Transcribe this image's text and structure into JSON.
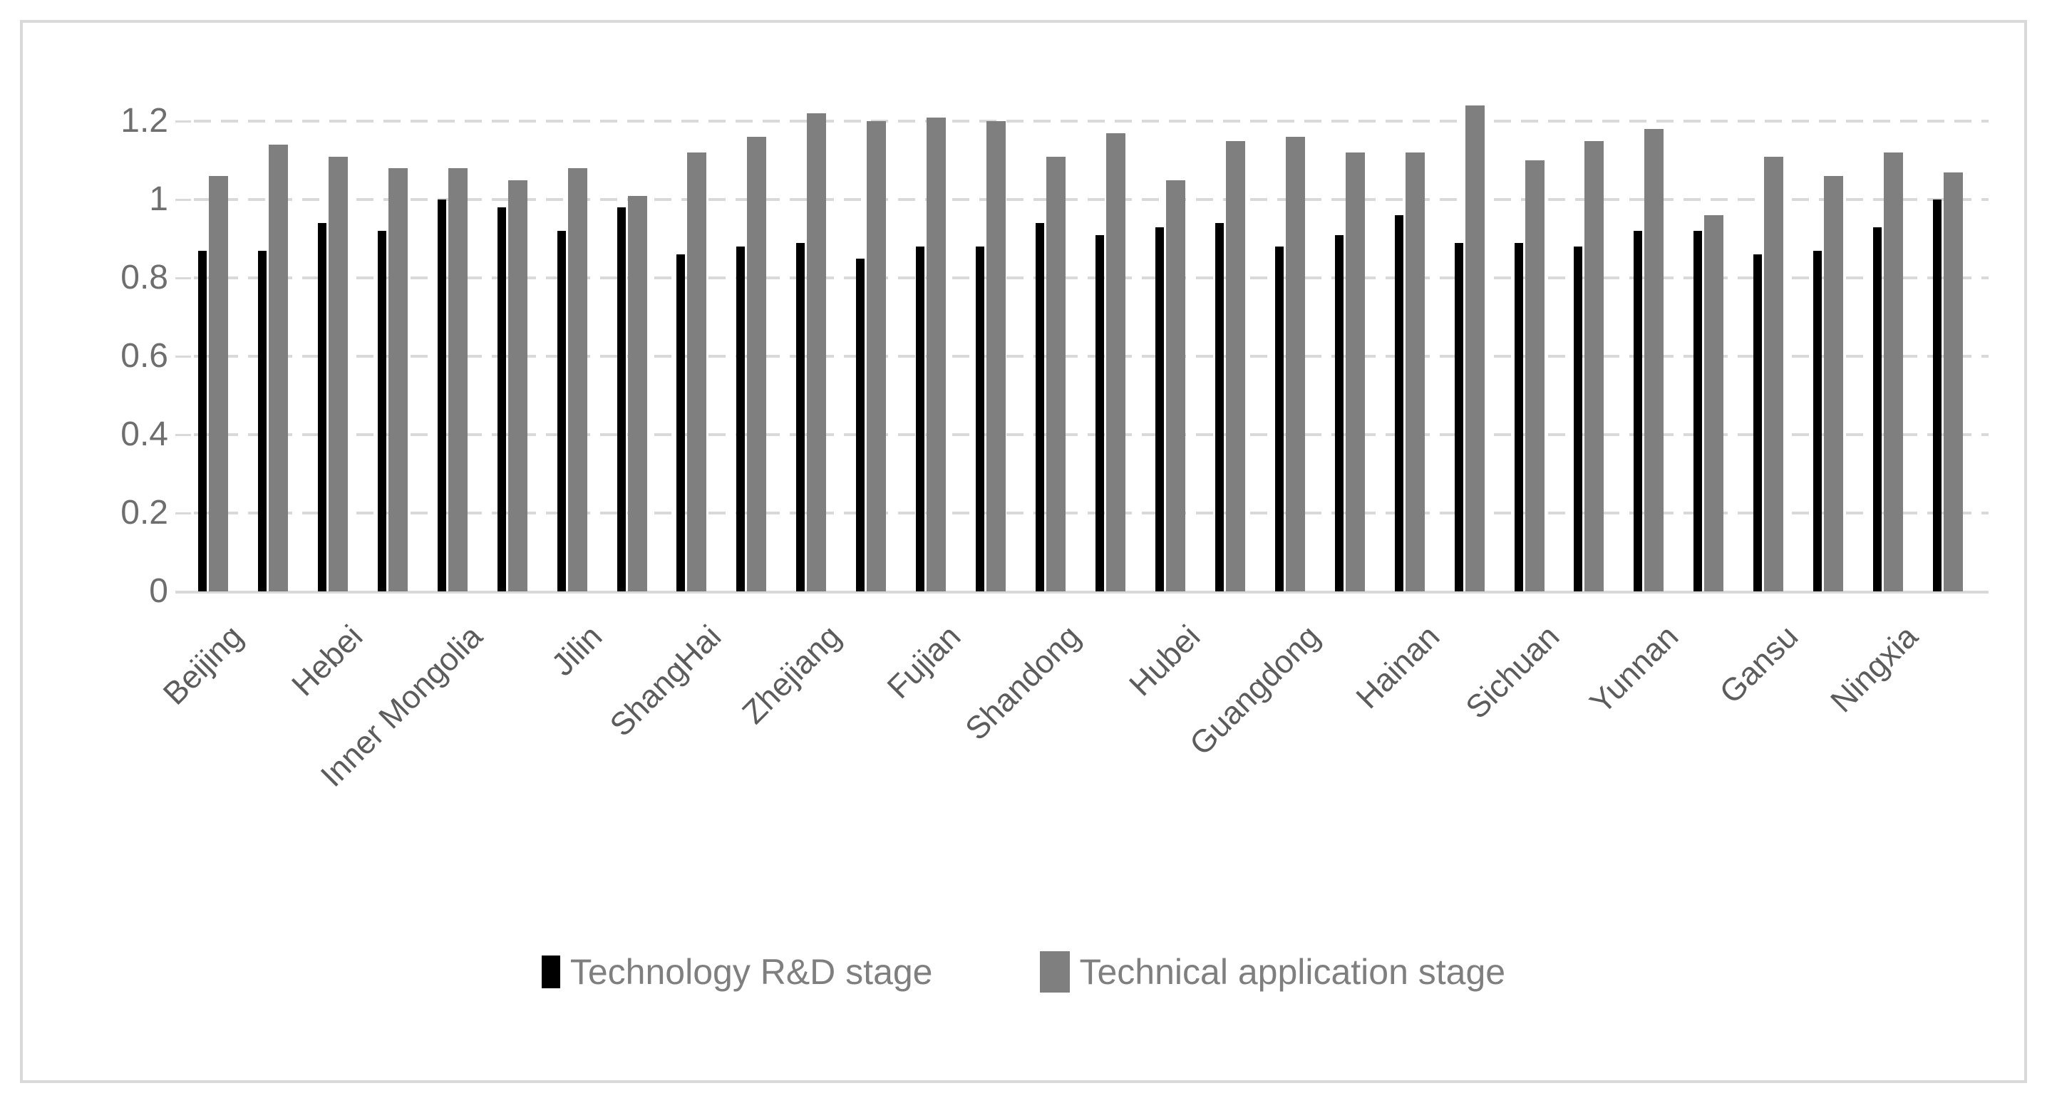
{
  "figure": {
    "background_color": "#ffffff",
    "border_color": "#d9d9d9"
  },
  "chart_data": {
    "type": "bar",
    "title": "",
    "xlabel": "",
    "ylabel": "",
    "n_categories": 30,
    "x_label_every_n_categories": 2,
    "x_tick_labels": [
      "Beijing",
      "Hebei",
      "Inner Mongolia",
      "Jilin",
      "ShangHai",
      "Zhejiang",
      "Fujian",
      "Shandong",
      "Hubei",
      "Guangdong",
      "Hainan",
      "Sichuan",
      "Yunnan",
      "Gansu",
      "Ningxia"
    ],
    "x_tick_label_rotation_deg": 45,
    "y_tick_labels": [
      "0",
      "0.2",
      "0.4",
      "0.6",
      "0.8",
      "1",
      "1.2"
    ],
    "y_tick_values": [
      0,
      0.2,
      0.4,
      0.6,
      0.8,
      1,
      1.2
    ],
    "ylim": [
      0,
      1.3
    ],
    "grid": "horizontal dashed",
    "gridline_color": "#d9d9d9",
    "legend_position": "bottom center",
    "series": [
      {
        "name": "Technology R&D stage",
        "color": "#000000",
        "values": [
          0.87,
          0.87,
          0.94,
          0.92,
          1.0,
          0.98,
          0.92,
          0.98,
          0.86,
          0.88,
          0.89,
          0.85,
          0.88,
          0.88,
          0.94,
          0.91,
          0.93,
          0.94,
          0.88,
          0.91,
          0.96,
          0.89,
          0.89,
          0.88,
          0.92,
          0.92,
          0.86,
          0.87,
          0.93,
          1.0
        ]
      },
      {
        "name": "Technical application stage",
        "color": "#7f7f7f",
        "values": [
          1.06,
          1.14,
          1.11,
          1.08,
          1.08,
          1.05,
          1.08,
          1.01,
          1.12,
          1.16,
          1.22,
          1.2,
          1.21,
          1.2,
          1.11,
          1.17,
          1.05,
          1.15,
          1.16,
          1.12,
          1.12,
          1.24,
          1.1,
          1.15,
          1.18,
          0.96,
          1.11,
          1.06,
          1.12,
          1.07
        ]
      }
    ]
  }
}
